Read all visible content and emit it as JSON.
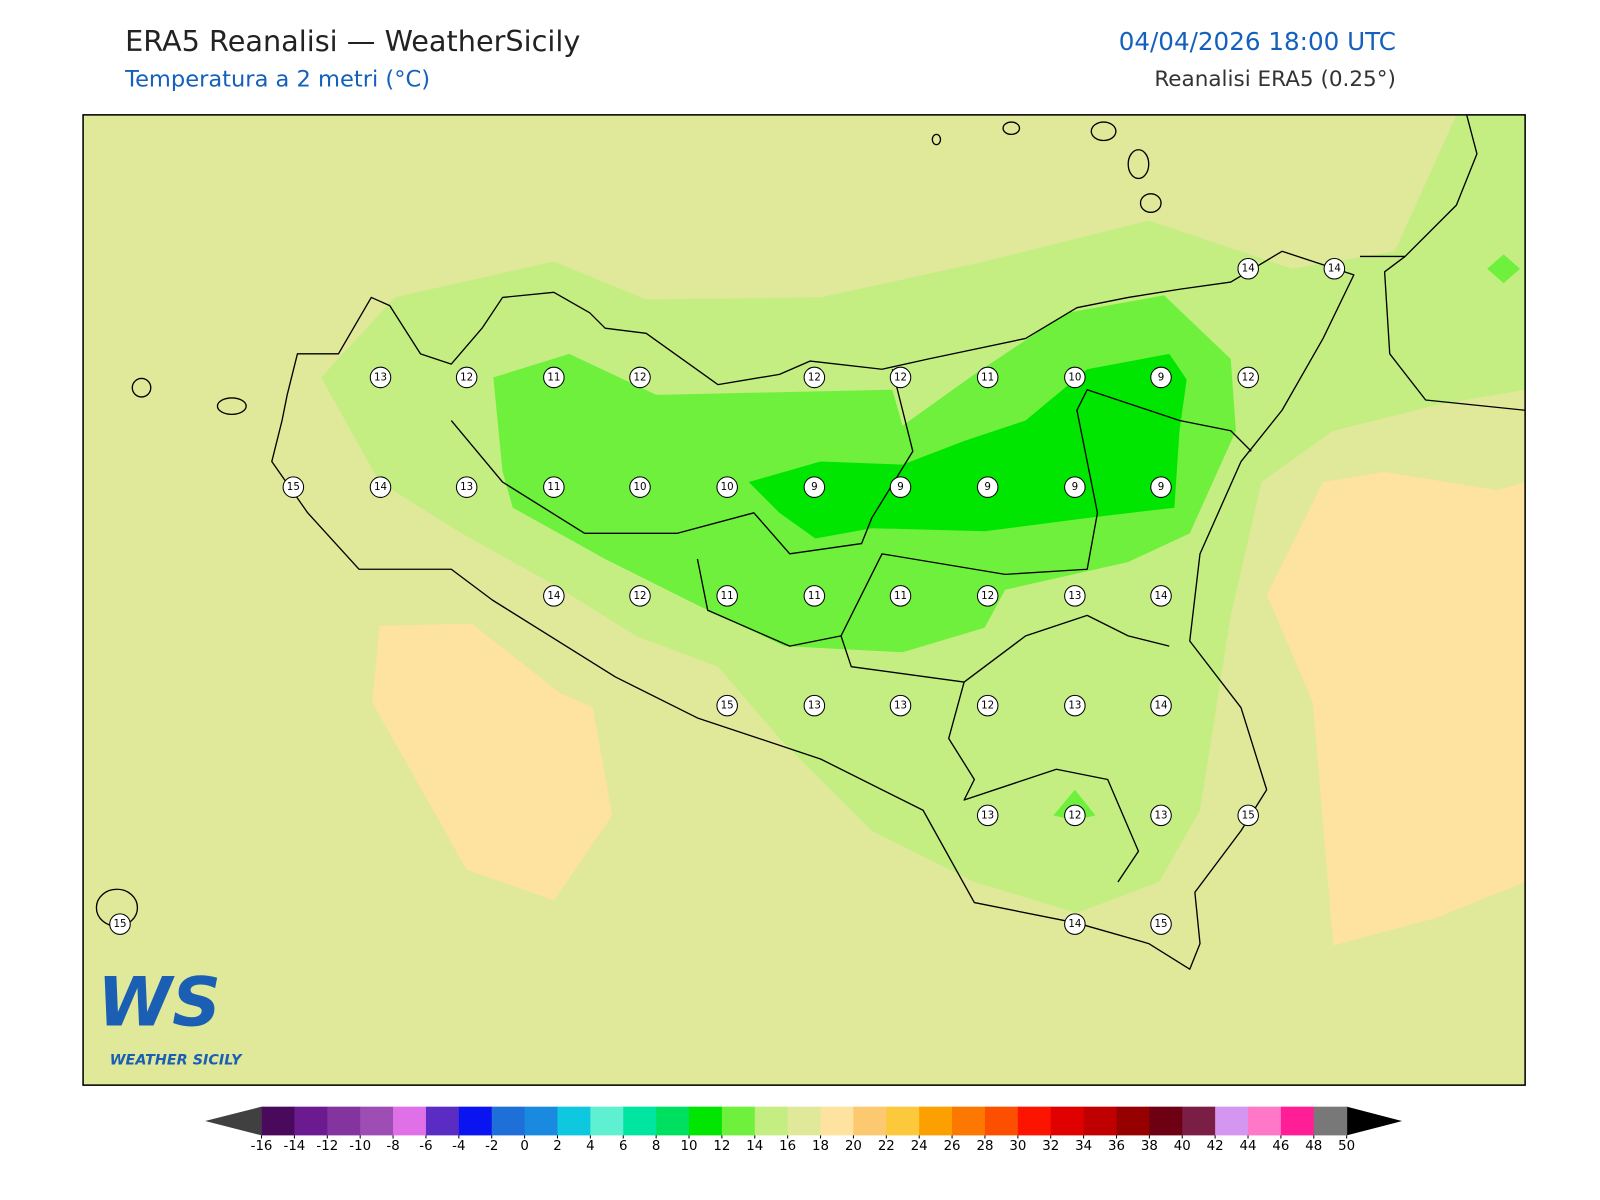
{
  "header": {
    "title": "ERA5 Reanalisi — WeatherSicily",
    "subtitle": "Temperatura a 2 metri (°C)",
    "datetime": "04/04/2026 18:00 UTC",
    "source": "Reanalisi ERA5 (0.25°)"
  },
  "stations": {
    "values": [
      14,
      14,
      13,
      12,
      11,
      12,
      12,
      12,
      11,
      10,
      9,
      12,
      15,
      14,
      13,
      11,
      10,
      10,
      9,
      9,
      9,
      9,
      9,
      14,
      12,
      11,
      11,
      11,
      12,
      13,
      14,
      15,
      13,
      13,
      12,
      13,
      14,
      13,
      12,
      13,
      15,
      15,
      14,
      15
    ]
  },
  "colorbar": {
    "ticks": [
      -16,
      -14,
      -12,
      -10,
      -8,
      -6,
      -4,
      -2,
      0,
      2,
      4,
      6,
      8,
      10,
      12,
      14,
      16,
      18,
      20,
      22,
      24,
      26,
      28,
      30,
      32,
      34,
      36,
      38,
      40,
      42,
      44,
      46,
      48,
      50
    ],
    "colors": [
      "#4a0a5c",
      "#6b1a8f",
      "#83349e",
      "#9e4db5",
      "#e070e8",
      "#5b2cc4",
      "#0a14f0",
      "#1f6fd8",
      "#1a8ae0",
      "#0ec8e0",
      "#5ef0d0",
      "#00e6a0",
      "#00e060",
      "#00e600",
      "#6ef03c",
      "#c4ee82",
      "#e0e89a",
      "#fde2a0",
      "#fcc870",
      "#fcc83c",
      "#fca000",
      "#fc7800",
      "#fc5000",
      "#fc1400",
      "#e00000",
      "#c00000",
      "#960000",
      "#6e0014",
      "#7a1e46",
      "#d496f0",
      "#ff78c8",
      "#ff1e96",
      "#787878",
      "#3c3c3c"
    ]
  },
  "logo": {
    "initials": "WS",
    "name": "WEATHER SICILY"
  }
}
